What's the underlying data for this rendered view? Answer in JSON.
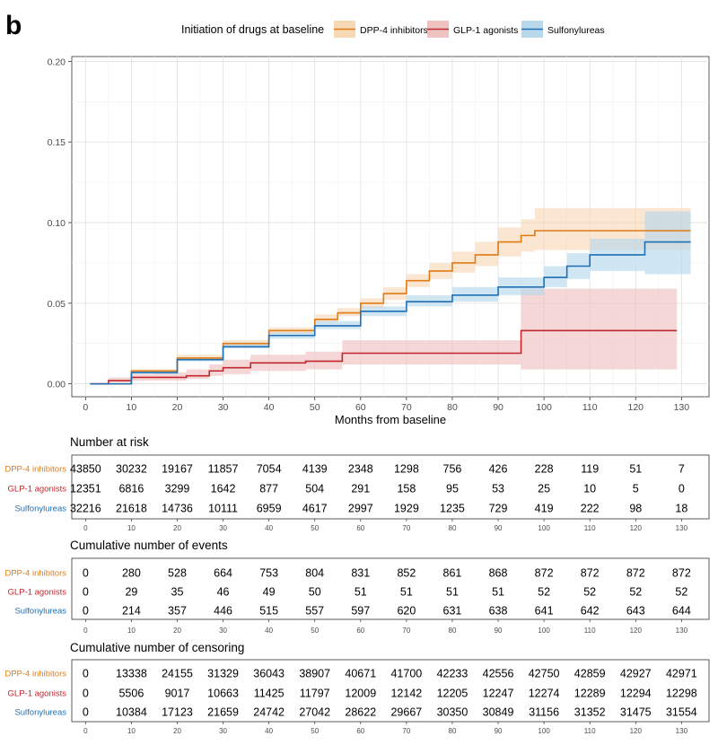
{
  "panel_label": "b",
  "legend": {
    "title": "Initiation of drugs at baseline",
    "items": [
      {
        "label": "DPP-4 inhibitors",
        "color": "#E07B16",
        "fill": "#F7D9B8"
      },
      {
        "label": "GLP-1 agonists",
        "color": "#C1272D",
        "fill": "#EEC2C0"
      },
      {
        "label": "Sulfonylureas",
        "color": "#1F6FB5",
        "fill": "#B9D8EC"
      }
    ]
  },
  "chart_data": {
    "type": "line",
    "subtype": "cumulative-incidence step curves with confidence bands",
    "xlabel": "Months from baseline",
    "ylabel": "",
    "xlim": [
      -3,
      136
    ],
    "ylim": [
      -0.008,
      0.203
    ],
    "x_ticks": [
      0,
      10,
      20,
      30,
      40,
      50,
      60,
      70,
      80,
      90,
      100,
      110,
      120,
      130
    ],
    "y_ticks": [
      0.0,
      0.05,
      0.1,
      0.15,
      0.2
    ],
    "y_tick_labels": [
      "0.00",
      "0.05",
      "0.10",
      "0.15",
      "0.20"
    ],
    "grid": true,
    "series": [
      {
        "name": "DPP-4 inhibitors",
        "color": "#E07B16",
        "band": "#F7D9B8",
        "x": [
          1,
          10,
          20,
          30,
          40,
          50,
          55,
          60,
          65,
          70,
          75,
          80,
          85,
          90,
          95,
          98,
          110,
          122,
          132
        ],
        "y": [
          0,
          0.008,
          0.016,
          0.025,
          0.033,
          0.04,
          0.044,
          0.05,
          0.056,
          0.064,
          0.07,
          0.075,
          0.08,
          0.088,
          0.092,
          0.095,
          0.095,
          0.095,
          0.095
        ],
        "lower": [
          0,
          0.007,
          0.015,
          0.023,
          0.031,
          0.038,
          0.042,
          0.047,
          0.052,
          0.06,
          0.065,
          0.069,
          0.073,
          0.079,
          0.082,
          0.083,
          0.083,
          0.083,
          0.083
        ],
        "upper": [
          0,
          0.009,
          0.018,
          0.027,
          0.035,
          0.043,
          0.047,
          0.053,
          0.06,
          0.068,
          0.075,
          0.082,
          0.088,
          0.097,
          0.102,
          0.109,
          0.109,
          0.109,
          0.109
        ]
      },
      {
        "name": "GLP-1 agonists",
        "color": "#C1272D",
        "band": "#EEC2C0",
        "x": [
          1,
          5,
          10,
          15,
          22,
          27,
          30,
          36,
          48,
          56,
          65,
          80,
          95,
          110,
          129
        ],
        "y": [
          0,
          0.002,
          0.004,
          0.004,
          0.005,
          0.008,
          0.01,
          0.013,
          0.014,
          0.019,
          0.019,
          0.019,
          0.033,
          0.033,
          0.033
        ],
        "lower": [
          0,
          0.001,
          0.002,
          0.002,
          0.003,
          0.005,
          0.006,
          0.008,
          0.009,
          0.012,
          0.012,
          0.012,
          0.009,
          0.009,
          0.009
        ],
        "upper": [
          0,
          0.004,
          0.006,
          0.007,
          0.009,
          0.012,
          0.015,
          0.018,
          0.02,
          0.027,
          0.027,
          0.027,
          0.059,
          0.059,
          0.059
        ]
      },
      {
        "name": "Sulfonylureas",
        "color": "#1F6FB5",
        "band": "#B9D8EC",
        "x": [
          1,
          10,
          20,
          30,
          40,
          50,
          60,
          70,
          80,
          90,
          100,
          105,
          110,
          122,
          132
        ],
        "y": [
          0,
          0.007,
          0.015,
          0.023,
          0.03,
          0.036,
          0.045,
          0.051,
          0.055,
          0.06,
          0.066,
          0.073,
          0.08,
          0.088,
          0.088
        ],
        "lower": [
          0,
          0.006,
          0.014,
          0.022,
          0.028,
          0.034,
          0.042,
          0.048,
          0.051,
          0.055,
          0.06,
          0.065,
          0.07,
          0.068,
          0.068
        ],
        "upper": [
          0,
          0.008,
          0.016,
          0.025,
          0.032,
          0.039,
          0.048,
          0.055,
          0.06,
          0.066,
          0.073,
          0.081,
          0.09,
          0.107,
          0.107
        ]
      }
    ]
  },
  "risk_tables": [
    {
      "title": "Number at risk",
      "rows": [
        {
          "label": "DPP-4 inhibitors",
          "color": "#E07B16",
          "values": [
            "43850",
            "30232",
            "19167",
            "11857",
            "7054",
            "4139",
            "2348",
            "1298",
            "756",
            "426",
            "228",
            "119",
            "51",
            "7"
          ]
        },
        {
          "label": "GLP-1 agonists",
          "color": "#C1272D",
          "values": [
            "12351",
            "6816",
            "3299",
            "1642",
            "877",
            "504",
            "291",
            "158",
            "95",
            "53",
            "25",
            "10",
            "5",
            "0"
          ]
        },
        {
          "label": "Sulfonylureas",
          "color": "#1F6FB5",
          "values": [
            "32216",
            "21618",
            "14736",
            "10111",
            "6959",
            "4617",
            "2997",
            "1929",
            "1235",
            "729",
            "419",
            "222",
            "98",
            "18"
          ]
        }
      ]
    },
    {
      "title": "Cumulative number of events",
      "rows": [
        {
          "label": "DPP-4 inhibitors",
          "color": "#E07B16",
          "values": [
            "0",
            "280",
            "528",
            "664",
            "753",
            "804",
            "831",
            "852",
            "861",
            "868",
            "872",
            "872",
            "872",
            "872"
          ]
        },
        {
          "label": "GLP-1 agonists",
          "color": "#C1272D",
          "values": [
            "0",
            "29",
            "35",
            "46",
            "49",
            "50",
            "51",
            "51",
            "51",
            "51",
            "52",
            "52",
            "52",
            "52"
          ]
        },
        {
          "label": "Sulfonylureas",
          "color": "#1F6FB5",
          "values": [
            "0",
            "214",
            "357",
            "446",
            "515",
            "557",
            "597",
            "620",
            "631",
            "638",
            "641",
            "642",
            "643",
            "644"
          ]
        }
      ]
    },
    {
      "title": "Cumulative number of censoring",
      "rows": [
        {
          "label": "DPP-4 inhibitors",
          "color": "#E07B16",
          "values": [
            "0",
            "13338",
            "24155",
            "31329",
            "36043",
            "38907",
            "40671",
            "41700",
            "42233",
            "42556",
            "42750",
            "42859",
            "42927",
            "42971"
          ]
        },
        {
          "label": "GLP-1 agonists",
          "color": "#C1272D",
          "values": [
            "0",
            "5506",
            "9017",
            "10663",
            "11425",
            "11797",
            "12009",
            "12142",
            "12205",
            "12247",
            "12274",
            "12289",
            "12294",
            "12298"
          ]
        },
        {
          "label": "Sulfonylureas",
          "color": "#1F6FB5",
          "values": [
            "0",
            "10384",
            "17123",
            "21659",
            "24742",
            "27042",
            "28622",
            "29667",
            "30350",
            "30849",
            "31156",
            "31352",
            "31475",
            "31554"
          ]
        }
      ]
    }
  ],
  "table_x_ticks": [
    "0",
    "10",
    "20",
    "30",
    "40",
    "50",
    "60",
    "70",
    "80",
    "90",
    "100",
    "110",
    "120",
    "130"
  ]
}
